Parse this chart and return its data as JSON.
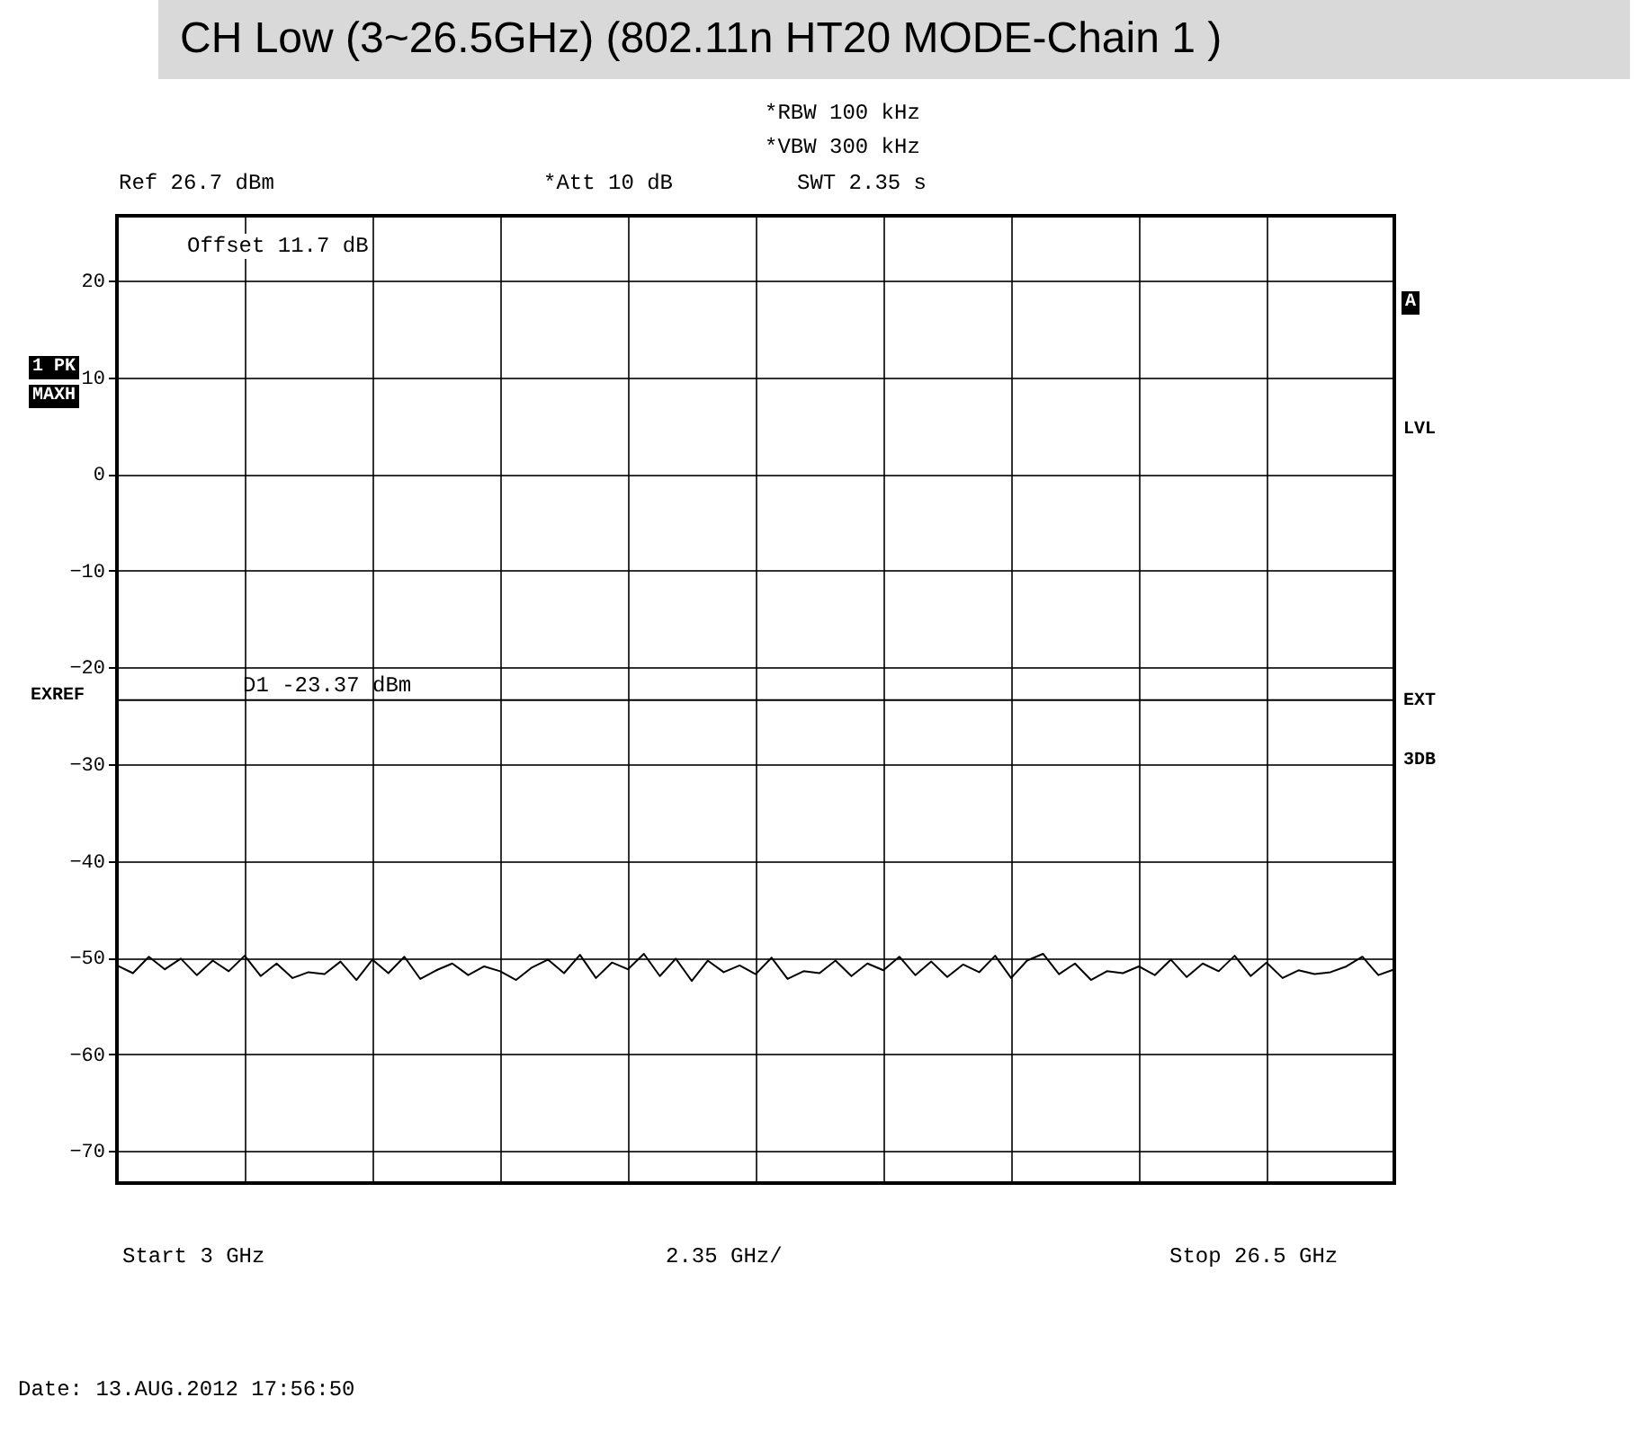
{
  "chart_data": {
    "type": "line",
    "title": "CH Low (3~26.5GHz) (802.11n HT20 MODE-Chain 1 )",
    "annotations": [
      "*RBW 100 kHz",
      "*VBW 300 kHz",
      "Ref 26.7 dBm",
      "*Att 10 dB",
      "SWT 2.35 s",
      "Offset 11.7 dB",
      "1 PK",
      "MAXH",
      "A",
      "LVL",
      "EXREF",
      "EXT",
      "3DB",
      "Date: 13.AUG.2012 17:56:50",
      "Start 3 GHz",
      "2.35 GHz/",
      "Stop 26.5 GHz"
    ],
    "categories": [
      null,
      null,
      null,
      null,
      null,
      null,
      null,
      null,
      null,
      null,
      null,
      null,
      null,
      null,
      null,
      null,
      null,
      null,
      null,
      null,
      null,
      null,
      null,
      null,
      null,
      null,
      null,
      null,
      null,
      null,
      null,
      null,
      null,
      null,
      null,
      null,
      null,
      null,
      null,
      null,
      null,
      null,
      null,
      null,
      null,
      null,
      null,
      null,
      null,
      null,
      null,
      null,
      null,
      null,
      null,
      null,
      null,
      null,
      null,
      null,
      null,
      null,
      null,
      null,
      null,
      null,
      null,
      null,
      null,
      null,
      null,
      null,
      null,
      null,
      null,
      null,
      null,
      null,
      null,
      null,
      null
    ],
    "series": [
      {
        "color": "#000000",
        "values": [
          -50.8,
          -51.6,
          -49.9,
          -51.2,
          -50.1,
          -51.8,
          -50.3,
          -51.4,
          -49.8,
          -51.9,
          -50.6,
          -52.1,
          -51.5,
          -51.7,
          -50.4,
          -52.3,
          -50.2,
          -51.6,
          -49.9,
          -52.2,
          -51.3,
          -50.6,
          -51.8,
          -50.9,
          -51.4,
          -52.3,
          -51.0,
          -50.2,
          -51.6,
          -49.7,
          -52.1,
          -50.5,
          -51.2,
          -49.6,
          -51.9,
          -50.1,
          -52.4,
          -50.3,
          -51.5,
          -50.8,
          -51.7,
          -50.0,
          -52.2,
          -51.4,
          -51.6,
          -50.3,
          -51.9,
          -50.6,
          -51.3,
          -49.9,
          -51.8,
          -50.4,
          -52.0,
          -50.7,
          -51.5,
          -49.8,
          -52.1,
          -50.3,
          -49.6,
          -51.7,
          -50.6,
          -52.3,
          -51.4,
          -51.6,
          -50.9,
          -51.8,
          -50.2,
          -52.0,
          -50.6,
          -51.4,
          -49.8,
          -51.9,
          -50.5,
          -52.1,
          -51.3,
          -51.7,
          -51.5,
          -50.9,
          -49.9,
          -51.8,
          -51.2
        ]
      }
    ],
    "ylim": [
      -73.3,
      26.7
    ],
    "yticks": [
      20,
      10,
      0,
      -10,
      -20,
      -30,
      -40,
      -50,
      -60,
      -70
    ],
    "ref_lines": [
      {
        "axis": "y",
        "value": -23.37,
        "label": "D1 -23.37 dBm"
      }
    ],
    "grid": true,
    "marker": "none",
    "line_style": "solid"
  }
}
